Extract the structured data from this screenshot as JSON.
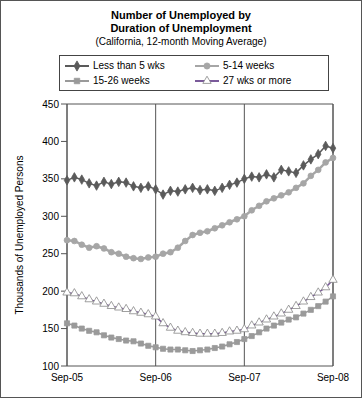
{
  "chart_data": {
    "type": "line",
    "title": "Number of Unemployed by Duration of Unemployment",
    "subtitle": "(California, 12-month Moving Average)",
    "y_label": "Thousands of Unemployed Persons",
    "categories": [
      "Sep-05",
      null,
      null,
      null,
      null,
      null,
      null,
      null,
      null,
      null,
      null,
      null,
      "Sep-06",
      null,
      null,
      null,
      null,
      null,
      null,
      null,
      null,
      null,
      null,
      null,
      "Sep-07",
      null,
      null,
      null,
      null,
      null,
      null,
      null,
      null,
      null,
      null,
      null,
      "Sep-08"
    ],
    "series": [
      {
        "name": "Less than 5 wks",
        "color": "#5a5a5a",
        "marker": "diamond",
        "values": [
          348,
          352,
          349,
          344,
          341,
          346,
          343,
          346,
          345,
          340,
          338,
          340,
          336,
          329,
          334,
          333,
          336,
          338,
          335,
          336,
          334,
          338,
          342,
          345,
          350,
          353,
          352,
          356,
          352,
          362,
          360,
          358,
          368,
          376,
          383,
          394,
          391
        ]
      },
      {
        "name": "5-14 weeks",
        "color": "#a6a6a6",
        "marker": "circle",
        "values": [
          268,
          267,
          262,
          258,
          260,
          257,
          252,
          250,
          246,
          244,
          243,
          245,
          246,
          250,
          252,
          258,
          267,
          275,
          278,
          280,
          284,
          288,
          292,
          296,
          300,
          308,
          314,
          320,
          324,
          328,
          332,
          338,
          344,
          354,
          362,
          372,
          378
        ]
      },
      {
        "name": "15-26 weeks",
        "color": "#9a9a9a",
        "marker": "square",
        "values": [
          157,
          154,
          150,
          147,
          145,
          141,
          138,
          136,
          134,
          133,
          130,
          127,
          125,
          123,
          122,
          122,
          121,
          120,
          121,
          122,
          124,
          126,
          129,
          132,
          136,
          140,
          145,
          150,
          154,
          158,
          162,
          165,
          170,
          175,
          180,
          186,
          193
        ]
      },
      {
        "name": "27 wks or more",
        "color": "#7a5a9a",
        "marker": "triangle",
        "values": [
          198,
          197,
          193,
          189,
          186,
          183,
          180,
          178,
          176,
          173,
          171,
          169,
          166,
          157,
          151,
          147,
          145,
          144,
          143,
          143,
          143,
          144,
          146,
          147,
          149,
          154,
          158,
          162,
          166,
          170,
          175,
          180,
          186,
          192,
          198,
          205,
          215
        ]
      }
    ],
    "ylim": [
      100,
      450
    ],
    "yticks": [
      100,
      150,
      200,
      250,
      300,
      350,
      400,
      450
    ],
    "grid": "x",
    "legend": "top"
  }
}
